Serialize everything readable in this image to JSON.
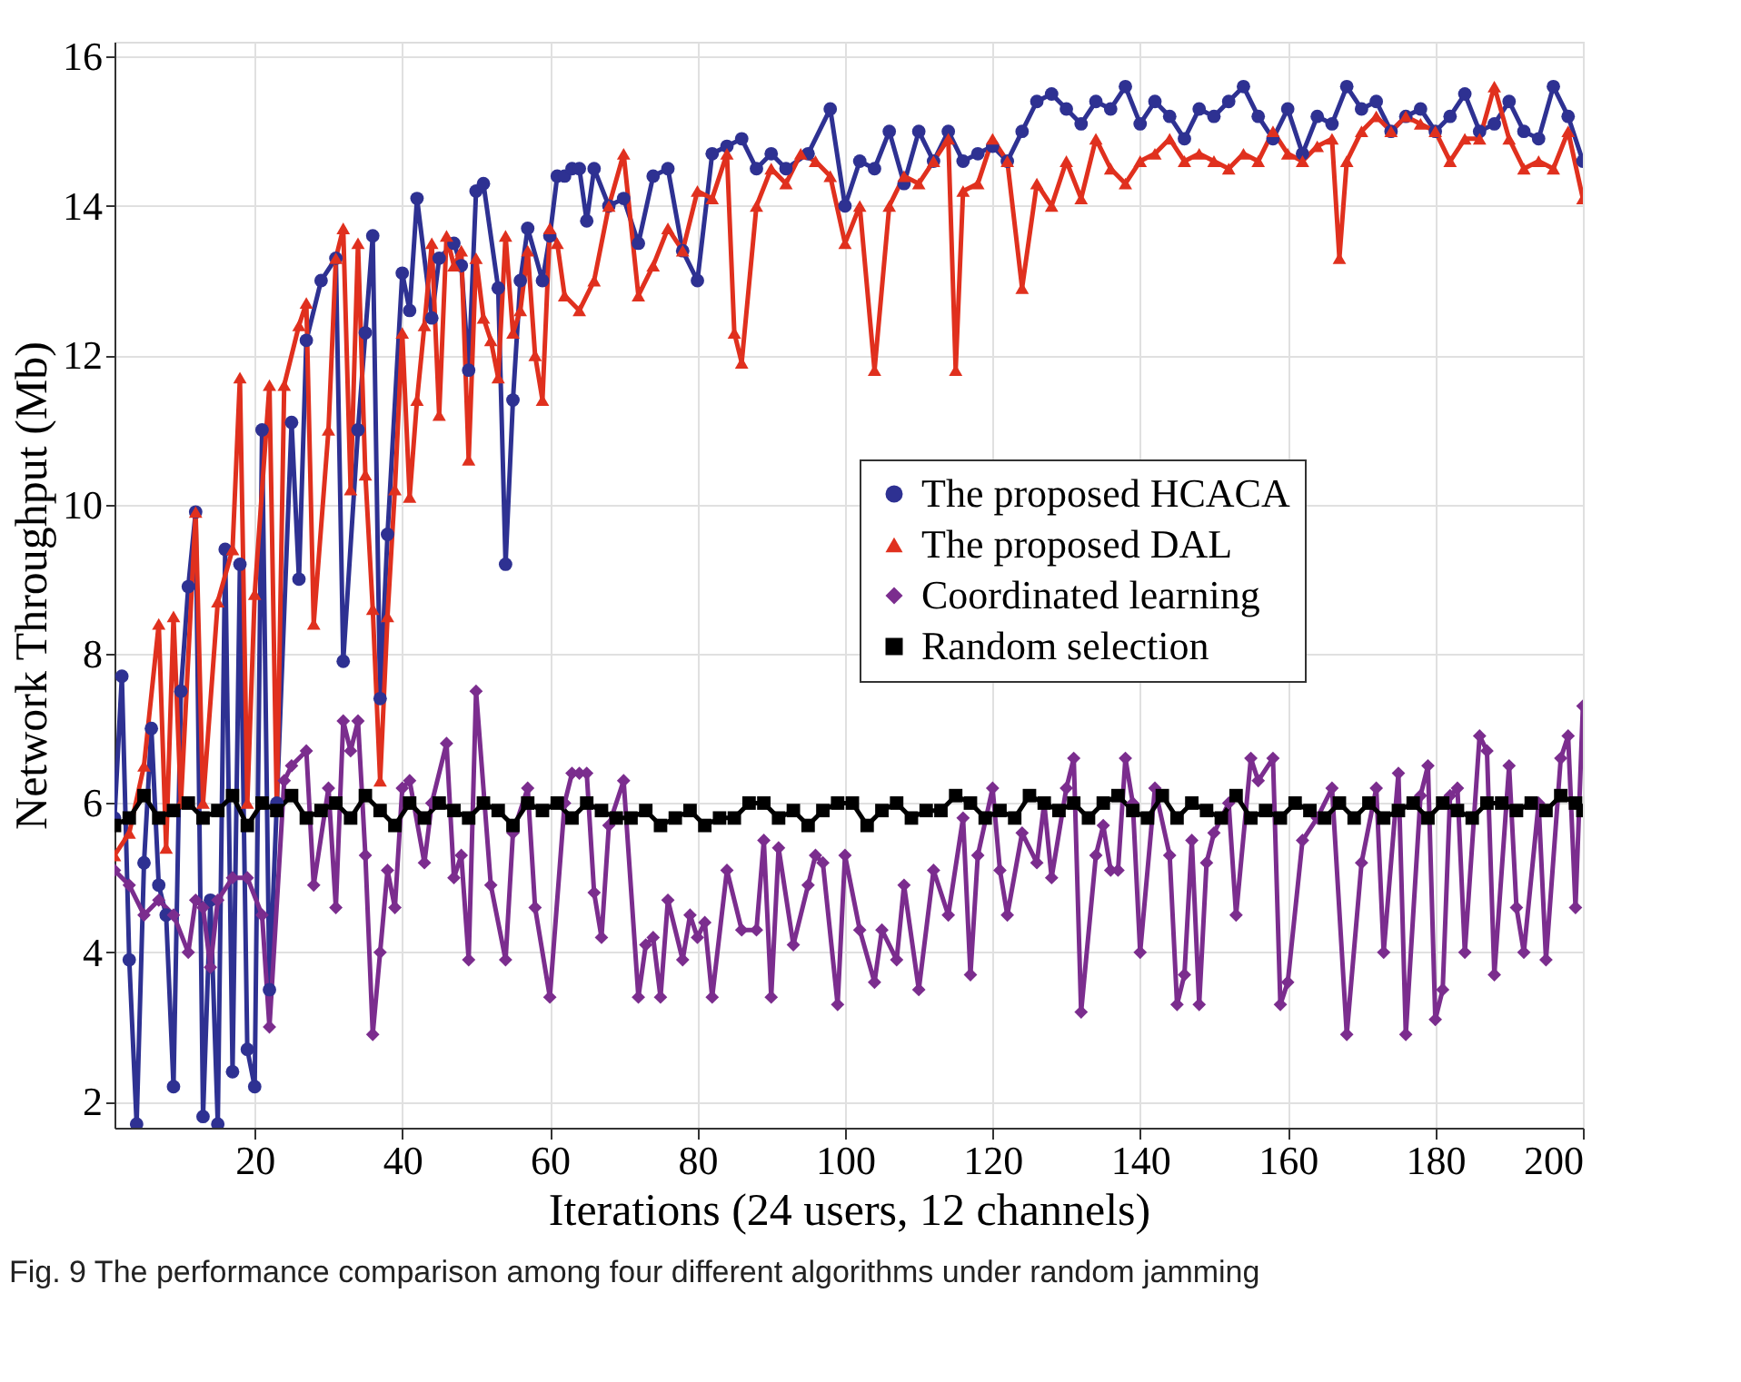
{
  "chart_data": {
    "type": "line",
    "xlabel": "Iterations (24 users, 12 channels)",
    "ylabel": "Network Throughput (Mb)",
    "xlim": [
      1,
      200
    ],
    "xticks": [
      20,
      40,
      60,
      80,
      100,
      120,
      140,
      160,
      180,
      200
    ],
    "ylim": [
      1.65,
      16.2
    ],
    "yticks": [
      2,
      4,
      6,
      8,
      10,
      12,
      14,
      16
    ],
    "grid": true,
    "legend": "right",
    "annotations": [
      "Fig. 9 The performance comparison among four different algorithms under random jamming"
    ],
    "series": [
      {
        "name": "The proposed HCACA",
        "color": "#2e3192",
        "marker": "circle",
        "x": [
          1,
          2,
          3,
          4,
          5,
          6,
          7,
          8,
          9,
          10,
          11,
          12,
          13,
          14,
          15,
          16,
          17,
          18,
          19,
          20,
          21,
          22,
          23,
          25,
          26,
          27,
          29,
          31,
          32,
          34,
          35,
          36,
          37,
          38,
          40,
          41,
          42,
          44,
          45,
          47,
          48,
          49,
          50,
          51,
          53,
          54,
          55,
          56,
          57,
          59,
          60,
          61,
          62,
          63,
          64,
          65,
          66,
          68,
          70,
          72,
          74,
          76,
          78,
          80,
          82,
          84,
          86,
          88,
          90,
          92,
          95,
          98,
          100,
          102,
          104,
          106,
          108,
          110,
          112,
          114,
          116,
          118,
          120,
          122,
          124,
          126,
          128,
          130,
          132,
          134,
          136,
          138,
          140,
          142,
          144,
          146,
          148,
          150,
          152,
          154,
          156,
          158,
          160,
          162,
          164,
          166,
          168,
          170,
          172,
          174,
          176,
          178,
          180,
          182,
          184,
          186,
          188,
          190,
          192,
          194,
          196,
          198,
          200
        ],
        "values": [
          5.8,
          7.7,
          3.9,
          1.7,
          5.2,
          7.0,
          4.9,
          4.5,
          2.2,
          7.5,
          8.9,
          9.9,
          1.8,
          4.7,
          1.7,
          9.4,
          2.4,
          9.2,
          2.7,
          2.2,
          11.0,
          3.5,
          6.0,
          11.1,
          9.0,
          12.2,
          13.0,
          13.3,
          7.9,
          11.0,
          12.3,
          13.6,
          7.4,
          9.6,
          13.1,
          12.6,
          14.1,
          12.5,
          13.3,
          13.5,
          13.2,
          11.8,
          14.2,
          14.3,
          12.9,
          9.2,
          11.4,
          13.0,
          13.7,
          13.0,
          13.6,
          14.4,
          14.4,
          14.5,
          14.5,
          13.8,
          14.5,
          14.0,
          14.1,
          13.5,
          14.4,
          14.5,
          13.4,
          13.0,
          14.7,
          14.8,
          14.9,
          14.5,
          14.7,
          14.5,
          14.7,
          15.3,
          14.0,
          14.6,
          14.5,
          15.0,
          14.3,
          15.0,
          14.6,
          15.0,
          14.6,
          14.7,
          14.8,
          14.6,
          15.0,
          15.4,
          15.5,
          15.3,
          15.1,
          15.4,
          15.3,
          15.6,
          15.1,
          15.4,
          15.2,
          14.9,
          15.3,
          15.2,
          15.4,
          15.6,
          15.2,
          14.9,
          15.3,
          14.7,
          15.2,
          15.1,
          15.6,
          15.3,
          15.4,
          15.0,
          15.2,
          15.3,
          15.0,
          15.2,
          15.5,
          15.0,
          15.1,
          15.4,
          15.0,
          14.9,
          15.6,
          15.2,
          14.6
        ]
      },
      {
        "name": "The proposed DAL",
        "color": "#e0301e",
        "marker": "triangle",
        "x": [
          1,
          3,
          5,
          7,
          8,
          9,
          10,
          12,
          13,
          15,
          17,
          18,
          19,
          20,
          22,
          23,
          24,
          26,
          27,
          28,
          30,
          31,
          32,
          33,
          34,
          35,
          36,
          37,
          38,
          39,
          40,
          41,
          42,
          43,
          44,
          45,
          46,
          47,
          48,
          49,
          50,
          51,
          52,
          53,
          54,
          55,
          56,
          57,
          58,
          59,
          60,
          61,
          62,
          64,
          66,
          68,
          70,
          72,
          74,
          76,
          78,
          80,
          82,
          84,
          85,
          86,
          88,
          90,
          92,
          94,
          96,
          98,
          100,
          102,
          104,
          106,
          108,
          110,
          112,
          114,
          115,
          116,
          118,
          120,
          122,
          124,
          126,
          128,
          130,
          132,
          134,
          136,
          138,
          140,
          142,
          144,
          146,
          148,
          150,
          152,
          154,
          156,
          158,
          160,
          162,
          164,
          166,
          167,
          168,
          170,
          172,
          174,
          176,
          178,
          180,
          182,
          184,
          186,
          188,
          190,
          192,
          194,
          196,
          198,
          200
        ],
        "values": [
          5.3,
          5.6,
          6.5,
          8.4,
          5.4,
          8.5,
          6.0,
          9.9,
          6.0,
          8.7,
          9.4,
          11.7,
          6.0,
          8.8,
          11.6,
          5.9,
          11.6,
          12.4,
          12.7,
          8.4,
          11.0,
          13.3,
          13.7,
          10.2,
          13.5,
          10.4,
          8.6,
          6.3,
          8.5,
          10.2,
          12.3,
          10.1,
          11.4,
          12.4,
          13.5,
          11.2,
          13.6,
          13.2,
          13.4,
          10.6,
          13.3,
          12.5,
          12.2,
          11.7,
          13.6,
          12.3,
          12.6,
          13.4,
          12.0,
          11.4,
          13.7,
          13.5,
          12.8,
          12.6,
          13.0,
          14.0,
          14.7,
          12.8,
          13.2,
          13.7,
          13.4,
          14.2,
          14.1,
          14.7,
          12.3,
          11.9,
          14.0,
          14.5,
          14.3,
          14.7,
          14.6,
          14.4,
          13.5,
          14.0,
          11.8,
          14.0,
          14.4,
          14.3,
          14.6,
          14.9,
          11.8,
          14.2,
          14.3,
          14.9,
          14.6,
          12.9,
          14.3,
          14.0,
          14.6,
          14.1,
          14.9,
          14.5,
          14.3,
          14.6,
          14.7,
          14.9,
          14.6,
          14.7,
          14.6,
          14.5,
          14.7,
          14.6,
          15.0,
          14.7,
          14.6,
          14.8,
          14.9,
          13.3,
          14.6,
          15.0,
          15.2,
          15.0,
          15.2,
          15.1,
          15.0,
          14.6,
          14.9,
          14.9,
          15.6,
          14.9,
          14.5,
          14.6,
          14.5,
          15.0,
          14.1
        ]
      },
      {
        "name": "Coordinated learning",
        "color": "#7b2d8e",
        "marker": "diamond",
        "x": [
          1,
          3,
          5,
          7,
          9,
          11,
          12,
          13,
          14,
          15,
          17,
          19,
          21,
          22,
          24,
          25,
          27,
          28,
          30,
          31,
          32,
          33,
          34,
          35,
          36,
          37,
          38,
          39,
          40,
          41,
          43,
          44,
          46,
          47,
          48,
          49,
          50,
          52,
          54,
          55,
          57,
          58,
          60,
          62,
          63,
          64,
          65,
          66,
          67,
          68,
          70,
          72,
          73,
          74,
          75,
          76,
          78,
          79,
          80,
          81,
          82,
          84,
          86,
          88,
          89,
          90,
          91,
          93,
          95,
          96,
          97,
          99,
          100,
          102,
          104,
          105,
          107,
          108,
          110,
          112,
          114,
          116,
          117,
          118,
          120,
          121,
          122,
          124,
          126,
          127,
          128,
          130,
          131,
          132,
          134,
          135,
          136,
          137,
          138,
          139,
          140,
          142,
          144,
          145,
          146,
          147,
          148,
          149,
          150,
          152,
          153,
          155,
          156,
          158,
          159,
          160,
          162,
          164,
          166,
          168,
          170,
          172,
          173,
          175,
          176,
          178,
          179,
          180,
          181,
          182,
          183,
          184,
          186,
          187,
          188,
          190,
          191,
          192,
          194,
          195,
          197,
          198,
          199,
          200
        ],
        "values": [
          5.1,
          4.9,
          4.5,
          4.7,
          4.5,
          4.0,
          4.7,
          4.6,
          3.8,
          4.7,
          5.0,
          5.0,
          4.5,
          3.0,
          6.3,
          6.5,
          6.7,
          4.9,
          6.2,
          4.6,
          7.1,
          6.7,
          7.1,
          5.3,
          2.9,
          4.0,
          5.1,
          4.6,
          6.2,
          6.3,
          5.2,
          6.0,
          6.8,
          5.0,
          5.3,
          3.9,
          7.5,
          4.9,
          3.9,
          5.6,
          6.2,
          4.6,
          3.4,
          6.0,
          6.4,
          6.4,
          6.4,
          4.8,
          4.2,
          5.7,
          6.3,
          3.4,
          4.1,
          4.2,
          3.4,
          4.7,
          3.9,
          4.5,
          4.2,
          4.4,
          3.4,
          5.1,
          4.3,
          4.3,
          5.5,
          3.4,
          5.4,
          4.1,
          4.9,
          5.3,
          5.2,
          3.3,
          5.3,
          4.3,
          3.6,
          4.3,
          3.9,
          4.9,
          3.5,
          5.1,
          4.5,
          5.8,
          3.7,
          5.3,
          6.2,
          5.1,
          4.5,
          5.6,
          5.2,
          6.0,
          5.0,
          6.2,
          6.6,
          3.2,
          5.3,
          5.7,
          5.1,
          5.1,
          6.6,
          6.0,
          4.0,
          6.2,
          5.3,
          3.3,
          3.7,
          5.5,
          3.3,
          5.2,
          5.6,
          6.0,
          4.5,
          6.6,
          6.3,
          6.6,
          3.3,
          3.6,
          5.5,
          5.8,
          6.2,
          2.9,
          5.2,
          6.2,
          4.0,
          6.4,
          2.9,
          6.1,
          6.5,
          3.1,
          3.5,
          6.1,
          6.2,
          4.0,
          6.9,
          6.7,
          3.7,
          6.5,
          4.6,
          4.0,
          6.0,
          3.9,
          6.6,
          6.9,
          4.6,
          7.3
        ]
      },
      {
        "name": "Random selection",
        "color": "#000000",
        "marker": "square",
        "x": [
          1,
          3,
          5,
          7,
          9,
          11,
          13,
          15,
          17,
          19,
          21,
          23,
          25,
          27,
          29,
          31,
          33,
          35,
          37,
          39,
          41,
          43,
          45,
          47,
          49,
          51,
          53,
          55,
          57,
          59,
          61,
          63,
          65,
          67,
          69,
          71,
          73,
          75,
          77,
          79,
          81,
          83,
          85,
          87,
          89,
          91,
          93,
          95,
          97,
          99,
          101,
          103,
          105,
          107,
          109,
          111,
          113,
          115,
          117,
          119,
          121,
          123,
          125,
          127,
          129,
          131,
          133,
          135,
          137,
          139,
          141,
          143,
          145,
          147,
          149,
          151,
          153,
          155,
          157,
          159,
          161,
          163,
          165,
          167,
          169,
          171,
          173,
          175,
          177,
          179,
          181,
          183,
          185,
          187,
          189,
          191,
          193,
          195,
          197,
          199,
          200
        ],
        "values": [
          5.7,
          5.8,
          6.1,
          5.8,
          5.9,
          6.0,
          5.8,
          5.9,
          6.1,
          5.7,
          6.0,
          5.9,
          6.1,
          5.8,
          5.9,
          6.0,
          5.8,
          6.1,
          5.9,
          5.7,
          6.0,
          5.8,
          6.0,
          5.9,
          5.8,
          6.0,
          5.9,
          5.7,
          6.0,
          5.9,
          6.0,
          5.8,
          6.0,
          5.9,
          5.8,
          5.8,
          5.9,
          5.7,
          5.8,
          5.9,
          5.7,
          5.8,
          5.8,
          6.0,
          6.0,
          5.8,
          5.9,
          5.7,
          5.9,
          6.0,
          6.0,
          5.7,
          5.9,
          6.0,
          5.8,
          5.9,
          5.9,
          6.1,
          6.0,
          5.8,
          5.9,
          5.8,
          6.1,
          6.0,
          5.9,
          6.0,
          5.8,
          6.0,
          6.1,
          5.9,
          5.8,
          6.1,
          5.8,
          6.0,
          5.9,
          5.8,
          6.1,
          5.8,
          5.9,
          5.8,
          6.0,
          5.9,
          5.8,
          6.0,
          5.8,
          6.0,
          5.8,
          5.9,
          6.0,
          5.8,
          6.0,
          5.9,
          5.8,
          6.0,
          6.0,
          5.9,
          6.0,
          5.9,
          6.1,
          6.0,
          5.9
        ]
      }
    ]
  }
}
